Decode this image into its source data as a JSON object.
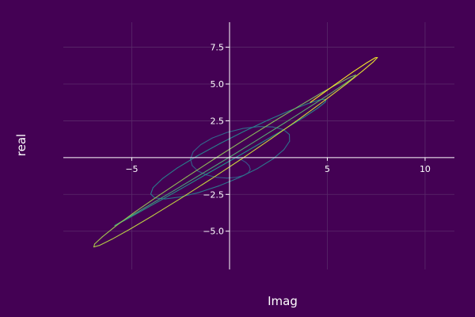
{
  "chart_data": {
    "type": "line",
    "title": "",
    "xlabel": "Imag",
    "ylabel": "real",
    "xlim": [
      -8.5,
      11.5
    ],
    "ylim": [
      -7.6,
      9.2
    ],
    "x_ticks": [
      -5,
      5,
      10
    ],
    "x_tick_labels": [
      "−5",
      "5",
      "10"
    ],
    "y_ticks": [
      -5,
      -2.5,
      2.5,
      5,
      7.5
    ],
    "y_tick_labels": [
      "−5.0",
      "−2.5",
      "2.5",
      "5.0",
      "7.5"
    ],
    "grid": true,
    "legend": "none",
    "colors": {
      "background": "#440154",
      "axis": "#ffffff",
      "grid": "#5a2a6a",
      "curve_start": "#3b528b",
      "curve_mid": "#21918c",
      "curve_end": "#fde725"
    },
    "series": [
      {
        "x": [
          0.3,
          0.58,
          0.83,
          1.0,
          1.06,
          0.97,
          0.73,
          0.35,
          -0.13,
          -0.66,
          -1.18,
          -1.62,
          -1.91,
          -2.0,
          -1.86,
          -1.47,
          -0.88,
          -0.13,
          0.69,
          1.5,
          2.22,
          2.76,
          3.06,
          3.07,
          2.78,
          2.22,
          1.43,
          0.48,
          -0.56,
          -1.59,
          -2.54,
          -3.3,
          -3.82,
          -4.03,
          -3.91,
          -3.44,
          -2.68,
          -1.67,
          -0.5,
          0.75,
          1.97,
          3.08,
          3.99,
          4.62,
          4.94,
          4.9,
          4.51,
          3.79,
          2.8,
          1.59,
          0.26,
          -1.12,
          -2.45,
          -3.66,
          -4.66,
          -5.39,
          -5.81,
          -5.87,
          -5.57,
          -4.95,
          -4.02,
          -2.84,
          -1.49,
          -0.04,
          1.42,
          2.82,
          4.07,
          5.11,
          5.88,
          6.34,
          6.45,
          6.21,
          5.64,
          4.76,
          3.62,
          2.28,
          0.82,
          -0.7,
          -2.19,
          -3.59,
          -4.82,
          -5.81,
          -6.51,
          -6.9,
          -6.94,
          -6.64,
          -6.02,
          -5.09,
          -3.91,
          -2.52,
          -1.01,
          0.57,
          2.11,
          3.57,
          4.87,
          5.96,
          6.79,
          7.34,
          7.56,
          7.46,
          7.04,
          6.32,
          5.34,
          4.13
        ],
        "y": [
          0.0,
          -0.13,
          -0.32,
          -0.55,
          -0.79,
          -1.02,
          -1.21,
          -1.34,
          -1.39,
          -1.34,
          -1.18,
          -0.91,
          -0.54,
          -0.1,
          0.39,
          0.88,
          1.33,
          1.71,
          1.98,
          2.11,
          2.08,
          1.9,
          1.57,
          1.11,
          0.54,
          -0.09,
          -0.74,
          -1.37,
          -1.93,
          -2.38,
          -2.68,
          -2.81,
          -2.74,
          -2.48,
          -2.04,
          -1.44,
          -0.71,
          0.1,
          0.95,
          1.79,
          2.55,
          3.19,
          3.66,
          3.93,
          3.97,
          3.78,
          3.36,
          2.73,
          1.92,
          0.98,
          -0.04,
          -1.08,
          -2.09,
          -3.0,
          -3.74,
          -4.28,
          -4.58,
          -4.62,
          -4.38,
          -3.89,
          -3.16,
          -2.24,
          -1.16,
          0.0,
          1.2,
          2.36,
          3.42,
          4.31,
          5.0,
          5.44,
          5.61,
          5.49,
          5.09,
          4.44,
          3.55,
          2.47,
          1.26,
          -0.02,
          -1.31,
          -2.55,
          -3.68,
          -4.64,
          -5.39,
          -5.87,
          -6.07,
          -5.96,
          -5.55,
          -4.86,
          -3.93,
          -2.79,
          -1.51,
          -0.13,
          1.27,
          2.63,
          3.89,
          4.99,
          5.87,
          6.49,
          6.8,
          6.79,
          6.46,
          5.83,
          4.91,
          3.75
        ]
      }
    ]
  }
}
